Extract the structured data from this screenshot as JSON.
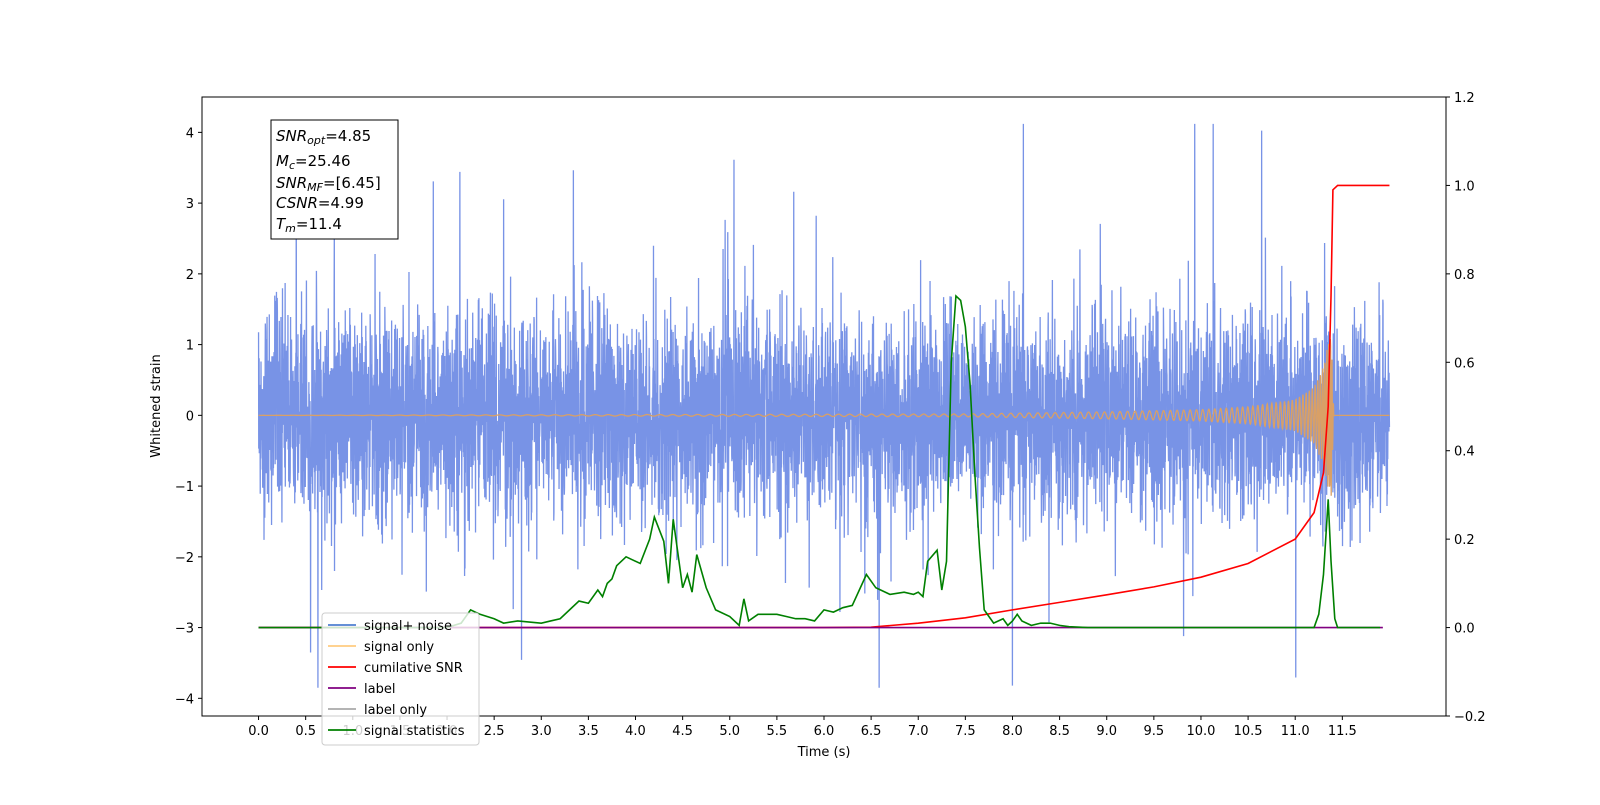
{
  "chart_data": {
    "type": "line",
    "xlabel": "Time (s)",
    "ylabel": "Whitened strain",
    "xlim": [
      -0.6,
      12.6
    ],
    "ylim": [
      -4.25,
      4.5
    ],
    "ylim_right": [
      -0.2,
      1.2
    ],
    "x_ticks": [
      "0.0",
      "0.5",
      "1.0",
      "1.5",
      "2.0",
      "2.5",
      "3.0",
      "3.5",
      "4.0",
      "4.5",
      "5.0",
      "5.5",
      "6.0",
      "6.5",
      "7.0",
      "7.5",
      "8.0",
      "8.5",
      "9.0",
      "9.5",
      "10.0",
      "10.5",
      "11.0",
      "11.5"
    ],
    "y_ticks_left": [
      "−4",
      "−3",
      "−2",
      "−1",
      "0",
      "1",
      "2",
      "3",
      "4"
    ],
    "y_ticks_right": [
      "−0.2",
      "0.0",
      "0.2",
      "0.4",
      "0.6",
      "0.8",
      "1.0",
      "1.2"
    ],
    "grid": false,
    "legend_location": "lower-left",
    "series": [
      {
        "name": "signal+ noise",
        "color": "#7893e6",
        "axis": "left",
        "kind": "noise",
        "x_range": [
          0.0,
          12.0
        ],
        "amplitude_range": [
          -3.85,
          4.12
        ],
        "approx_rms": 1.0
      },
      {
        "name": "signal only",
        "color": "#d9a066",
        "axis": "left",
        "kind": "chirp",
        "x_range": [
          0.0,
          11.4
        ],
        "peak_time": 11.38,
        "peak_amplitude": 1.25,
        "envelope": [
          [
            0.0,
            0.0
          ],
          [
            7.5,
            0.02
          ],
          [
            9.0,
            0.05
          ],
          [
            10.0,
            0.08
          ],
          [
            10.5,
            0.12
          ],
          [
            11.0,
            0.22
          ],
          [
            11.2,
            0.4
          ],
          [
            11.3,
            0.7
          ],
          [
            11.38,
            1.25
          ],
          [
            11.41,
            0.0
          ],
          [
            12.0,
            0.0
          ]
        ]
      },
      {
        "name": "cumilative SNR",
        "color": "#ff0000",
        "axis": "right",
        "x": [
          0.0,
          6.0,
          6.5,
          7.0,
          7.5,
          8.0,
          8.5,
          9.0,
          9.5,
          10.0,
          10.5,
          11.0,
          11.2,
          11.3,
          11.35,
          11.38,
          11.4,
          11.45,
          12.0
        ],
        "y": [
          0.0,
          0.0,
          0.001,
          0.01,
          0.022,
          0.04,
          0.057,
          0.074,
          0.092,
          0.114,
          0.145,
          0.2,
          0.26,
          0.35,
          0.5,
          0.75,
          0.99,
          1.0,
          1.0
        ]
      },
      {
        "name": "label",
        "color": "#800080",
        "axis": "right",
        "x": [
          0.0,
          11.93
        ],
        "y": [
          0.0,
          0.0
        ]
      },
      {
        "name": "label only",
        "color": "#a9a9a9",
        "axis": "right",
        "x": [],
        "y": []
      },
      {
        "name": "signal statistics",
        "color": "#008000",
        "axis": "right",
        "x": [
          0.0,
          2.0,
          2.15,
          2.25,
          2.35,
          2.5,
          2.6,
          2.75,
          3.0,
          3.1,
          3.2,
          3.3,
          3.4,
          3.5,
          3.6,
          3.65,
          3.7,
          3.75,
          3.8,
          3.9,
          3.95,
          4.05,
          4.15,
          4.2,
          4.3,
          4.35,
          4.4,
          4.5,
          4.55,
          4.6,
          4.65,
          4.75,
          4.85,
          5.0,
          5.1,
          5.15,
          5.2,
          5.3,
          5.4,
          5.5,
          5.6,
          5.7,
          5.8,
          5.9,
          6.0,
          6.1,
          6.2,
          6.3,
          6.45,
          6.55,
          6.7,
          6.85,
          6.95,
          7.0,
          7.05,
          7.1,
          7.2,
          7.25,
          7.3,
          7.35,
          7.4,
          7.45,
          7.5,
          7.55,
          7.6,
          7.65,
          7.7,
          7.75,
          7.8,
          7.9,
          7.95,
          8.0,
          8.05,
          8.1,
          8.2,
          8.3,
          8.4,
          8.5,
          8.6,
          8.8,
          9.0,
          11.2,
          11.25,
          11.3,
          11.35,
          11.38,
          11.42,
          11.45,
          11.5,
          11.55,
          11.9
        ],
        "y": [
          0.0,
          0.0,
          0.01,
          0.04,
          0.03,
          0.02,
          0.01,
          0.015,
          0.01,
          0.015,
          0.02,
          0.04,
          0.06,
          0.055,
          0.085,
          0.07,
          0.1,
          0.11,
          0.14,
          0.16,
          0.155,
          0.145,
          0.2,
          0.25,
          0.195,
          0.1,
          0.245,
          0.09,
          0.12,
          0.08,
          0.165,
          0.09,
          0.04,
          0.025,
          0.005,
          0.065,
          0.015,
          0.03,
          0.03,
          0.03,
          0.025,
          0.02,
          0.02,
          0.015,
          0.04,
          0.035,
          0.045,
          0.05,
          0.12,
          0.09,
          0.075,
          0.08,
          0.075,
          0.08,
          0.07,
          0.15,
          0.175,
          0.085,
          0.15,
          0.6,
          0.75,
          0.74,
          0.68,
          0.55,
          0.35,
          0.18,
          0.04,
          0.025,
          0.01,
          0.02,
          0.005,
          0.015,
          0.03,
          0.015,
          0.005,
          0.01,
          0.01,
          0.005,
          0.002,
          0.0,
          0.0,
          0.0,
          0.03,
          0.12,
          0.29,
          0.15,
          0.02,
          0.0,
          0.0,
          0.0,
          0.0
        ]
      }
    ]
  },
  "info_box": {
    "snr_opt": {
      "var": "SNR",
      "sub": "opt",
      "value": "=4.85"
    },
    "mc": {
      "var": "M",
      "sub": "c",
      "value": "=25.46"
    },
    "snr_mf": {
      "var": "SNR",
      "sub": "MF",
      "value": "=[6.45]"
    },
    "csnr": {
      "var": "CSNR",
      "value": "=4.99"
    },
    "tm": {
      "var": "T",
      "sub": "m",
      "value": "=11.4"
    }
  }
}
